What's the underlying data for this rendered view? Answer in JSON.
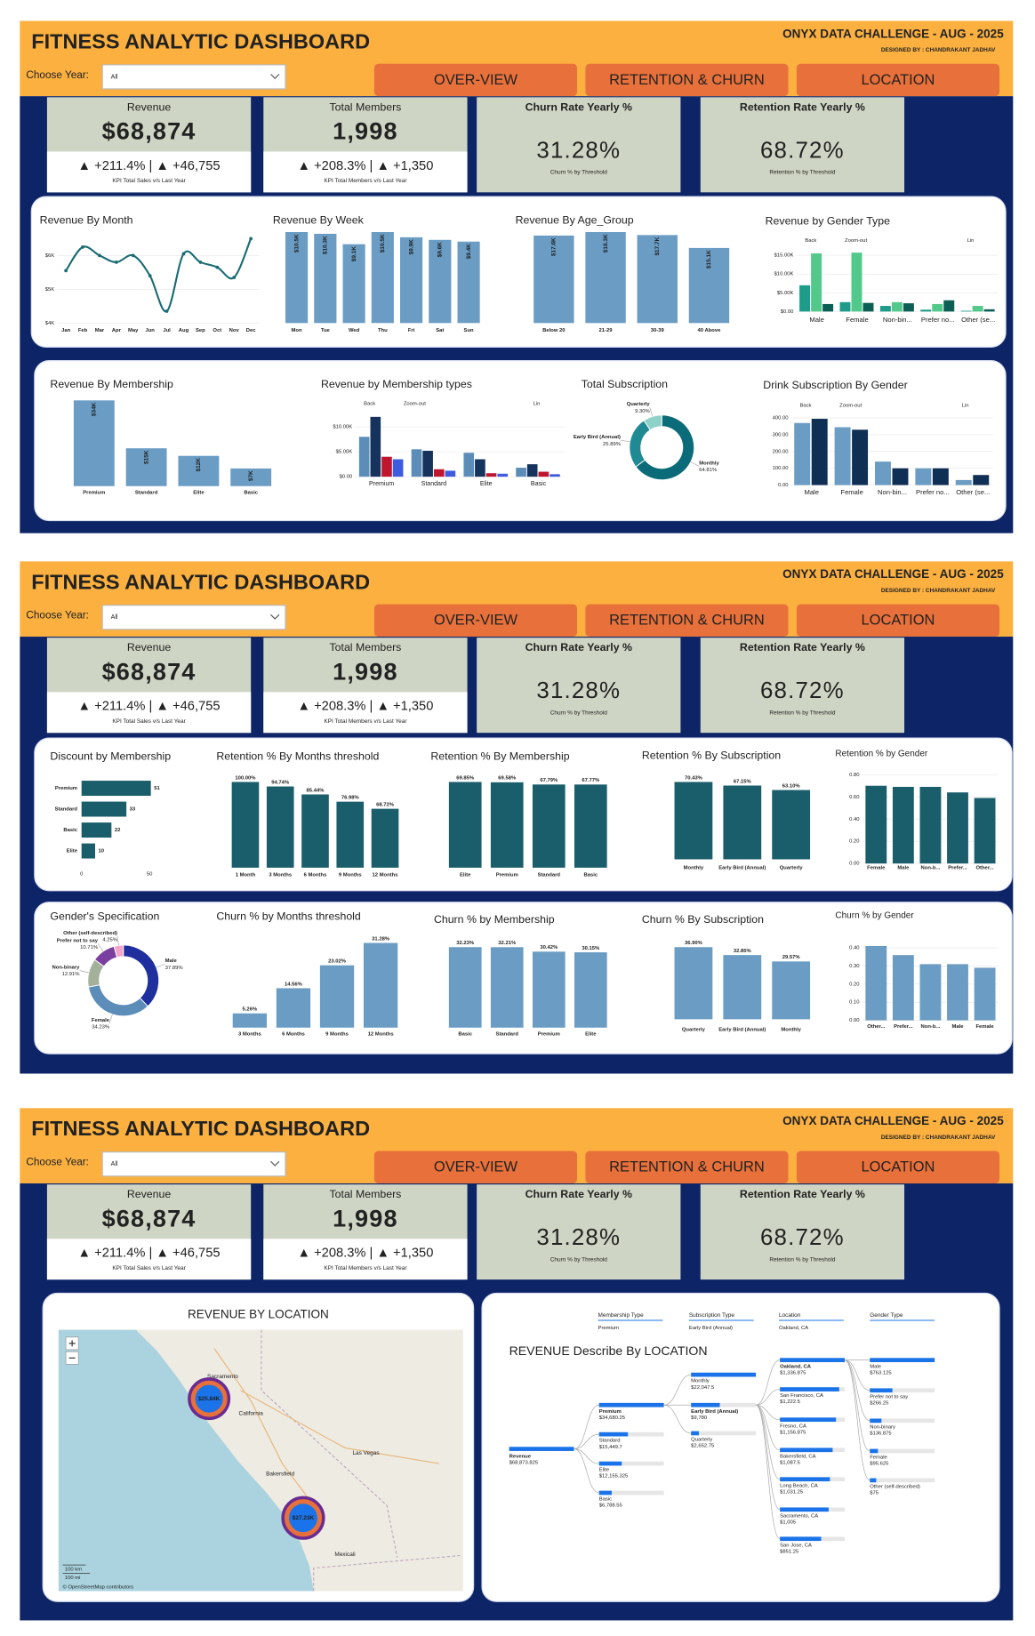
{
  "header": {
    "title": "FITNESS ANALYTIC DASHBOARD",
    "challenge": "ONYX DATA CHALLENGE - AUG - 2025",
    "designer": "DESIGNED BY : CHANDRAKANT JADHAV",
    "year_label": "Choose Year:",
    "year_value": "All",
    "tabs": [
      "OVER-VIEW",
      "RETENTION & CHURN",
      "LOCATION"
    ]
  },
  "kpis": [
    {
      "title": "Revenue",
      "value": "$68,874",
      "change": "▲ +211.4% | ▲ +46,755",
      "note": "KPI Total Sales v/s Last Year"
    },
    {
      "title": "Total Members",
      "value": "1,998",
      "change": "▲ +208.3% | ▲ +1,350",
      "note": "KPI Total Members v/s Last Year"
    },
    {
      "title": "Churn Rate Yearly %",
      "value": "31.28%",
      "note": "Churn % by Threshold"
    },
    {
      "title": "Retention Rate Yearly %",
      "value": "68.72%",
      "note": "Retention % by Threshold"
    }
  ],
  "chart_data": [
    {
      "type": "line",
      "title": "Revenue By Month",
      "categories": [
        "Jan",
        "Feb",
        "Mar",
        "Apr",
        "May",
        "Jun",
        "Jul",
        "Aug",
        "Sep",
        "Oct",
        "Nov",
        "Dec"
      ],
      "values": [
        5550,
        6250,
        6000,
        5800,
        6000,
        5400,
        4350,
        6050,
        5800,
        5650,
        5350,
        6500
      ],
      "color": "#1a6b73",
      "ylim": [
        4000,
        6600
      ],
      "yticks": [
        {
          "value": 4000,
          "label": "$4K"
        },
        {
          "value": 5000,
          "label": "$5K"
        },
        {
          "value": 6000,
          "label": "$6K"
        }
      ]
    },
    {
      "type": "bar",
      "title": "Revenue By Week",
      "categories": [
        "Mon",
        "Tue",
        "Wed",
        "Thu",
        "Fri",
        "Sat",
        "Sun"
      ],
      "values": [
        10500,
        10300,
        9100,
        10500,
        9900,
        9600,
        9400
      ],
      "value_labels": [
        "$10.5K",
        "$10.3K",
        "$9.1K",
        "$10.5K",
        "$9.9K",
        "$9.6K",
        "$9.4K"
      ],
      "color": "#6a9cc4"
    },
    {
      "type": "bar",
      "title": "Revenue By Age_Group",
      "categories": [
        "Below 20",
        "21-29",
        "30-39",
        "40 Above"
      ],
      "values": [
        17600,
        18300,
        17700,
        15100
      ],
      "value_labels": [
        "$17.6K",
        "$18.3K",
        "$17.7K",
        "$15.1K"
      ],
      "color": "#6a9cc4"
    },
    {
      "type": "grouped_bar",
      "title": "Revenue by Gender Type",
      "categories": [
        "Male",
        "Female",
        "Non-bin...",
        "Prefer no...",
        "Other (se..."
      ],
      "controls": [
        "Back",
        "Zoom-out",
        "Lin"
      ],
      "series": [
        {
          "color": "#1f9b8a",
          "values": [
            7000,
            2500,
            1500,
            500,
            200
          ]
        },
        {
          "color": "#52c98b",
          "values": [
            15500,
            15700,
            2500,
            2000,
            1500
          ]
        },
        {
          "color": "#0b5f55",
          "values": [
            2000,
            2300,
            2200,
            3000,
            600
          ]
        }
      ],
      "ylim": [
        0,
        17000
      ],
      "yticks": [
        {
          "value": 0,
          "label": "$0.00"
        },
        {
          "value": 5000,
          "label": "$5.00K"
        },
        {
          "value": 10000,
          "label": "$10.00K"
        },
        {
          "value": 15000,
          "label": "$15.00K"
        }
      ]
    },
    {
      "type": "bar",
      "title": "Revenue By Membership",
      "categories": [
        "Premium",
        "Standard",
        "Elite",
        "Basic"
      ],
      "values": [
        34000,
        15000,
        12000,
        7000
      ],
      "value_labels": [
        "$34K",
        "$15K",
        "$12K",
        "$7K"
      ],
      "color": "#6a9cc4"
    },
    {
      "type": "grouped_bar",
      "title": "Revenue by Membership types",
      "categories": [
        "Premium",
        "Standard",
        "Elite",
        "Basic"
      ],
      "controls": [
        "Back",
        "Zoom-out",
        "Lin"
      ],
      "series": [
        {
          "color": "#5b8db8",
          "values": [
            8000,
            5500,
            4800,
            1800
          ]
        },
        {
          "color": "#16335e",
          "values": [
            12000,
            5200,
            3500,
            2500
          ]
        },
        {
          "color": "#c0152f",
          "values": [
            4000,
            1500,
            700,
            1000
          ]
        },
        {
          "color": "#3f5be0",
          "values": [
            3500,
            1200,
            600,
            500
          ]
        }
      ],
      "ylim": [
        0,
        13000
      ],
      "yticks": [
        {
          "value": 0,
          "label": "$0.00"
        },
        {
          "value": 5000,
          "label": "$5.00K"
        },
        {
          "value": 10000,
          "label": "$10.00K"
        }
      ]
    },
    {
      "type": "pie",
      "title": "Total Subscription",
      "categories": [
        "Monthly",
        "Early Bird (Annual)",
        "Quarterly"
      ],
      "values": [
        64.81,
        25.89,
        9.3
      ],
      "value_labels": [
        "64.81%",
        "25.89%",
        "9.30%"
      ],
      "colors": [
        "#0b6b78",
        "#1f8a93",
        "#8fd1c8"
      ]
    },
    {
      "type": "grouped_bar",
      "title": "Drink Subscription By Gender",
      "categories": [
        "Male",
        "Female",
        "Non-bin...",
        "Prefer no...",
        "Other (se..."
      ],
      "controls": [
        "Back",
        "Zoom-out",
        "Lin"
      ],
      "series": [
        {
          "color": "#6a9cc4",
          "values": [
            370,
            345,
            140,
            100,
            30
          ]
        },
        {
          "color": "#102f55",
          "values": [
            395,
            330,
            100,
            100,
            60
          ]
        }
      ],
      "ylim": [
        0,
        430
      ],
      "yticks": [
        {
          "value": 0,
          "label": "0.00"
        },
        {
          "value": 100,
          "label": "100.00"
        },
        {
          "value": 200,
          "label": "200.00"
        },
        {
          "value": 300,
          "label": "300.00"
        },
        {
          "value": 400,
          "label": "400.00"
        }
      ]
    },
    {
      "type": "hbar",
      "title": "Discount by Membership",
      "categories": [
        "Premium",
        "Standard",
        "Basic",
        "Elite"
      ],
      "values": [
        51,
        33,
        22,
        10
      ],
      "color": "#1b5e6b",
      "xlim": [
        0,
        52
      ],
      "xticks": [
        0,
        50
      ]
    },
    {
      "type": "bar",
      "title": "Retention % By Months threshold",
      "categories": [
        "1 Month",
        "3 Months",
        "6 Months",
        "9 Months",
        "12 Months"
      ],
      "values": [
        100,
        94.74,
        85.44,
        76.98,
        68.72
      ],
      "value_labels": [
        "100.00%",
        "94.74%",
        "85.44%",
        "76.98%",
        "68.72%"
      ],
      "color": "#1b5e6b"
    },
    {
      "type": "bar",
      "title": "Retention % By Membership",
      "categories": [
        "Elite",
        "Premium",
        "Standard",
        "Basic"
      ],
      "values": [
        69.85,
        69.58,
        67.79,
        67.77
      ],
      "value_labels": [
        "69.85%",
        "69.58%",
        "67.79%",
        "67.77%"
      ],
      "color": "#1b5e6b"
    },
    {
      "type": "bar",
      "title": "Retention % By Subscription",
      "categories": [
        "Monthly",
        "Early Bird (Annual)",
        "Quarterly"
      ],
      "values": [
        70.43,
        67.15,
        63.1
      ],
      "value_labels": [
        "70.43%",
        "67.15%",
        "63.10%"
      ],
      "color": "#1b5e6b"
    },
    {
      "type": "bar",
      "title": "Retention % by Gender",
      "categories": [
        "Female",
        "Male",
        "Non-b...",
        "Prefer...",
        "Other..."
      ],
      "values": [
        0.7,
        0.69,
        0.69,
        0.64,
        0.59
      ],
      "color": "#1b5e6b",
      "ylim": [
        0,
        0.8
      ],
      "yticks": [
        {
          "value": 0,
          "label": "0.00"
        },
        {
          "value": 0.2,
          "label": "0.20"
        },
        {
          "value": 0.4,
          "label": "0.40"
        },
        {
          "value": 0.6,
          "label": "0.60"
        },
        {
          "value": 0.8,
          "label": "0.80"
        }
      ]
    },
    {
      "type": "pie",
      "title": "Gender's Specification",
      "categories": [
        "Male",
        "Female",
        "Non-binary",
        "Prefer not to say",
        "Other (self-described)"
      ],
      "values": [
        37.89,
        34.23,
        12.91,
        10.71,
        4.25
      ],
      "value_labels": [
        "37.89%",
        "34.23%",
        "12.91%",
        "10.71%",
        "4.25%"
      ],
      "colors": [
        "#1f2f9e",
        "#5b8db8",
        "#a3b19a",
        "#7b3fa0",
        "#f4a6c8"
      ]
    },
    {
      "type": "bar",
      "title": "Churn % by Months threshold",
      "categories": [
        "3 Months",
        "6 Months",
        "9 Months",
        "12 Months"
      ],
      "values": [
        5.26,
        14.56,
        23.02,
        31.28
      ],
      "value_labels": [
        "5.26%",
        "14.56%",
        "23.02%",
        "31.28%"
      ],
      "color": "#6a9cc4"
    },
    {
      "type": "bar",
      "title": "Churn % by Membership",
      "categories": [
        "Basic",
        "Standard",
        "Premium",
        "Elite"
      ],
      "values": [
        32.23,
        32.21,
        30.42,
        30.15
      ],
      "value_labels": [
        "32.23%",
        "32.21%",
        "30.42%",
        "30.15%"
      ],
      "color": "#6a9cc4"
    },
    {
      "type": "bar",
      "title": "Churn % By Subscription",
      "categories": [
        "Quarterly",
        "Early Bird (Annual)",
        "Monthly"
      ],
      "values": [
        36.9,
        32.85,
        29.57
      ],
      "value_labels": [
        "36.90%",
        "32.85%",
        "29.57%"
      ],
      "color": "#6a9cc4"
    },
    {
      "type": "bar",
      "title": "Churn % by Gender",
      "categories": [
        "Other...",
        "Prefer...",
        "Non-b...",
        "Male",
        "Female"
      ],
      "values": [
        0.41,
        0.36,
        0.31,
        0.31,
        0.29
      ],
      "color": "#6a9cc4",
      "ylim": [
        0,
        0.45
      ],
      "yticks": [
        {
          "value": 0,
          "label": "0.00"
        },
        {
          "value": 0.1,
          "label": "0.10"
        },
        {
          "value": 0.2,
          "label": "0.20"
        },
        {
          "value": 0.3,
          "label": "0.30"
        },
        {
          "value": 0.4,
          "label": "0.40"
        }
      ]
    },
    {
      "type": "map",
      "title": "REVENUE BY LOCATION",
      "values": [
        25840,
        27230
      ],
      "value_labels": [
        "$25.84K",
        "$27.23K"
      ],
      "places": [
        "Sacramento",
        "California",
        "Las Vegas",
        "Bakersfield",
        "Mexicali"
      ],
      "scale_labels": [
        "100 km",
        "100 mi"
      ],
      "attribution": "© OpenStreetMap contributors"
    },
    {
      "type": "decomposition_tree",
      "title": "REVENUE Describe By LOCATION",
      "filters": [
        {
          "name": "Membership Type",
          "value": "Premium"
        },
        {
          "name": "Subscription Type",
          "value": "Early Bird (Annual)"
        },
        {
          "name": "Location",
          "value": "Oakland, CA"
        },
        {
          "name": "Gender Type"
        }
      ],
      "root": {
        "name": "Revenue",
        "value": 68873.825,
        "value_label": "$68,873.825"
      },
      "levels": [
        {
          "categories": [
            "Premium",
            "Standard",
            "Elite",
            "Basic"
          ],
          "values": [
            34680.25,
            15449.7,
            12155.325,
            6788.55
          ],
          "value_labels": [
            "$34,680.25",
            "$15,449.7",
            "$12,155.325",
            "$6,788.55"
          ]
        },
        {
          "categories": [
            "Monthly",
            "Early Bird (Annual)",
            "Quarterly"
          ],
          "values": [
            22047.5,
            9780,
            2652.75
          ],
          "value_labels": [
            "$22,047.5",
            "$9,780",
            "$2,652.75"
          ]
        },
        {
          "categories": [
            "Oakland, CA",
            "San Francisco, CA",
            "Fresno, CA",
            "Bakersfield, CA",
            "Long Beach, CA",
            "Sacramento, CA",
            "San Jose, CA"
          ],
          "values": [
            1336.875,
            1222.5,
            1156.875,
            1087.5,
            1031.25,
            1005,
            851.25
          ],
          "value_labels": [
            "$1,336.875",
            "$1,222.5",
            "$1,156.875",
            "$1,087.5",
            "$1,031.25",
            "$1,005",
            "$851.25"
          ]
        },
        {
          "categories": [
            "Male",
            "Prefer not to say",
            "Non-binary",
            "Female",
            "Other (self-described)"
          ],
          "values": [
            763.125,
            266.25,
            136.875,
            95.625,
            75
          ],
          "value_labels": [
            "$763.125",
            "$266.25",
            "$136.875",
            "$95.625",
            "$75"
          ]
        }
      ]
    }
  ]
}
